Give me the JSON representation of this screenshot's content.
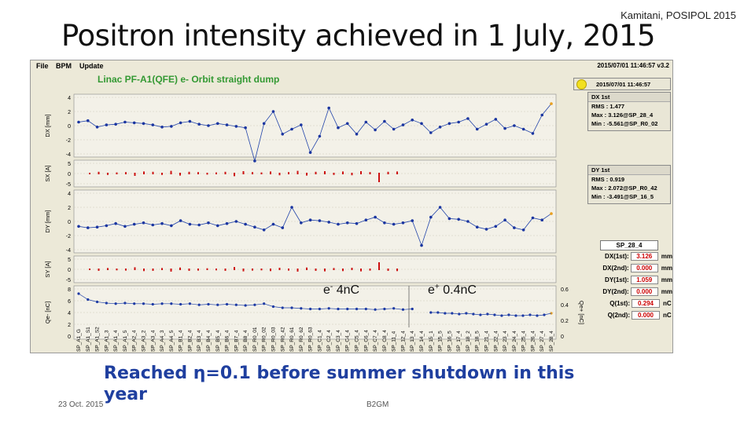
{
  "author_note": "Kamitani, POSIPOL 2015",
  "slide_title": "Positron intensity achieved in 1 July, 2015",
  "app": {
    "menu": [
      "File",
      "BPM",
      "Update"
    ],
    "top_timestamp": "2015/07/01 11:46:57  v3.2",
    "panel_title": "Linac PF-A1(QFE) e- Orbit straight dump",
    "timestamp_box": "2015/07/01 11:46:57",
    "axes": {
      "dx": {
        "label": "DX [mm]",
        "ticks": [
          "4",
          "2",
          "0",
          "-2",
          "-4"
        ]
      },
      "sx": {
        "label": "SX [A]",
        "ticks": [
          "5",
          "0",
          "-5"
        ]
      },
      "dy": {
        "label": "DY [mm]",
        "ticks": [
          "4",
          "2",
          "0",
          "-2",
          "-4"
        ]
      },
      "sy": {
        "label": "SY [A]",
        "ticks": [
          "5",
          "0",
          "-5"
        ]
      },
      "qe": {
        "label": "Qe- [nC]",
        "ticks": [
          "8",
          "6",
          "4",
          "2",
          "0"
        ]
      },
      "qp": {
        "label": "Qe+ [nC]",
        "ticks": [
          "0.6",
          "0.4",
          "0.2",
          "0"
        ]
      }
    },
    "annot_electron": "e- 4nC",
    "annot_electron_base": "e",
    "annot_electron_sup": "-",
    "annot_electron_rest": " 4nC",
    "annot_positron_base": "e",
    "annot_positron_sup": "+",
    "annot_positron_rest": " 0.4nC",
    "dx_box": {
      "head": "DX 1st",
      "rms": "RMS : 1.477",
      "max": "Max : 3.126@SP_28_4",
      "min": "Min : -5.561@SP_R0_02"
    },
    "dy_box": {
      "head": "DY 1st",
      "rms": "RMS : 0.919",
      "max": "Max : 2.072@SP_R0_42",
      "min": "Min : -3.491@SP_16_5"
    },
    "bpm_select": "SP_28_4",
    "bpm_rows": [
      {
        "label": "DX(1st):",
        "value": "3.126",
        "unit": "mm"
      },
      {
        "label": "DX(2nd):",
        "value": "0.000",
        "unit": "mm"
      },
      {
        "label": "DY(1st):",
        "value": "1.059",
        "unit": "mm"
      },
      {
        "label": "DY(2nd):",
        "value": "0.000",
        "unit": "mm"
      },
      {
        "label": "Q(1st):",
        "value": "0.294",
        "unit": "nC"
      },
      {
        "label": "Q(2nd):",
        "value": "0.000",
        "unit": "nC"
      }
    ],
    "bpm_names": [
      "SP_A1_G",
      "SP_A1_S1",
      "SP_A1_S2",
      "SP_A1_3",
      "SP_A1_4",
      "SP_A1_5",
      "SP_A2_4",
      "SP_A3_2",
      "SP_A3_4",
      "SP_A4_3",
      "SP_A4_5",
      "SP_B1_4",
      "SP_B2_4",
      "SP_B3_4",
      "SP_B4_4",
      "SP_B5_4",
      "SP_B6_4",
      "SP_B7_4",
      "SP_B8_4",
      "SP_R0_01",
      "SP_R0_02",
      "SP_R0_03",
      "SP_R0_42",
      "SP_R0_61",
      "SP_R0_62",
      "SP_R0_63",
      "SP_C1_4",
      "SP_C2_4",
      "SP_C3_4",
      "SP_C4_4",
      "SP_C5_4",
      "SP_C6_4",
      "SP_C7_4",
      "SP_C8_4",
      "SP_11_4",
      "SP_12_4",
      "SP_13_4",
      "SP_14_4",
      "SP_15_1",
      "SP_15_5",
      "SP_16_5",
      "SP_17_4",
      "SP_18_2",
      "SP_18_5",
      "SP_21_4",
      "SP_22_4",
      "SP_23_4",
      "SP_24_4",
      "SP_25_4",
      "SP_26_4",
      "SP_27_4",
      "SP_28_4"
    ]
  },
  "caption_line1": "Reached η=0.1 before summer shutdown in this",
  "caption_line2": "year",
  "footer_date": "23 Oct. 2015",
  "footer_center": "B2GM",
  "colors": {
    "trace": "#2244aa",
    "marker": "#1a35a0",
    "steering": "#cc1111",
    "title_green": "#339933",
    "caption": "#1f3f9f",
    "last_point": "#e8a020"
  }
}
